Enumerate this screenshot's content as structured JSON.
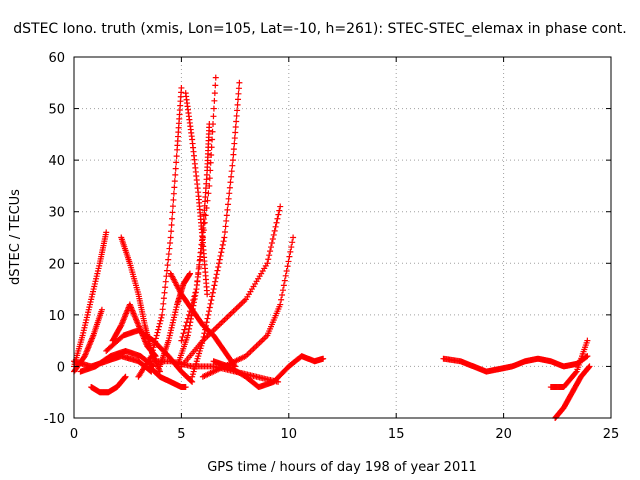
{
  "chart_data": {
    "type": "scatter",
    "title": "dSTEC Iono. truth (xmis, Lon=105, Lat=-10, h=261): STEC-STEC_elemax in phase cont.",
    "xlabel": "GPS time / hours of day 198 of year 2011",
    "ylabel": "dSTEC  / TECUs",
    "xlim": [
      0,
      25
    ],
    "ylim": [
      -10,
      60
    ],
    "xticks": [
      0,
      5,
      10,
      15,
      20,
      25
    ],
    "yticks": [
      -10,
      0,
      10,
      20,
      30,
      40,
      50,
      60
    ],
    "grid": true,
    "marker": "+",
    "color": "#ff0000",
    "series": [
      {
        "x": [
          0.0,
          0.4,
          0.8,
          1.2,
          1.5
        ],
        "y": [
          0,
          6,
          13,
          20,
          26
        ]
      },
      {
        "x": [
          0.0,
          0.5,
          0.9,
          1.3
        ],
        "y": [
          -1,
          2,
          6,
          11
        ]
      },
      {
        "x": [
          0.8,
          1.2,
          1.6,
          2.0,
          2.4
        ],
        "y": [
          -4,
          -5,
          -5,
          -4,
          -2
        ]
      },
      {
        "x": [
          0.0,
          0.8,
          1.5,
          2.2,
          3.0,
          3.6
        ],
        "y": [
          1,
          0,
          1,
          2,
          1,
          -1
        ]
      },
      {
        "x": [
          0.3,
          1.0,
          1.7,
          2.4,
          3.1,
          3.7
        ],
        "y": [
          -1,
          0,
          2,
          3,
          2,
          0
        ]
      },
      {
        "x": [
          2.2,
          2.6,
          3.0,
          3.3,
          3.6,
          4.0
        ],
        "y": [
          25,
          20,
          14,
          8,
          3,
          -1
        ]
      },
      {
        "x": [
          1.8,
          2.2,
          2.6,
          3.0,
          3.4,
          3.8
        ],
        "y": [
          5,
          8,
          12,
          8,
          4,
          2
        ]
      },
      {
        "x": [
          1.5,
          2.3,
          3.0,
          3.7,
          4.4,
          5.0,
          5.5
        ],
        "y": [
          3,
          6,
          7,
          5,
          2,
          -1,
          -3
        ]
      },
      {
        "x": [
          3.5,
          4.0,
          4.5,
          5.0,
          5.2
        ],
        "y": [
          0,
          -2,
          -3,
          -4,
          -4
        ]
      },
      {
        "x": [
          3.0,
          3.6,
          4.1,
          4.5,
          4.8,
          5.0
        ],
        "y": [
          -2,
          2,
          10,
          25,
          42,
          54
        ]
      },
      {
        "x": [
          4.0,
          4.4,
          4.8,
          5.1,
          5.4
        ],
        "y": [
          0,
          5,
          12,
          16,
          18
        ]
      },
      {
        "x": [
          4.5,
          5.0,
          5.5,
          6.0,
          6.5,
          7.0,
          7.5
        ],
        "y": [
          18,
          14,
          11,
          8,
          6,
          3,
          0
        ]
      },
      {
        "x": [
          5.2,
          5.5,
          5.8,
          6.0,
          6.2
        ],
        "y": [
          53,
          44,
          33,
          24,
          14
        ]
      },
      {
        "x": [
          4.8,
          5.3,
          5.7,
          6.0,
          6.2,
          6.3
        ],
        "y": [
          0,
          6,
          15,
          26,
          38,
          47
        ]
      },
      {
        "x": [
          5.0,
          5.7,
          6.3,
          6.6
        ],
        "y": [
          5,
          15,
          35,
          56
        ]
      },
      {
        "x": [
          5.5,
          6.0,
          6.5,
          7.0,
          7.4,
          7.7
        ],
        "y": [
          -2,
          5,
          15,
          25,
          40,
          55
        ]
      },
      {
        "x": [
          3.5,
          4.5,
          5.5,
          6.5,
          7.5,
          8.5,
          9.5
        ],
        "y": [
          1,
          1,
          0,
          0,
          -1,
          -2,
          -3
        ]
      },
      {
        "x": [
          5.0,
          6.0,
          7.0,
          8.0,
          9.0,
          9.6
        ],
        "y": [
          0,
          5,
          9,
          13,
          20,
          31
        ]
      },
      {
        "x": [
          6.0,
          7.0,
          8.0,
          9.0,
          9.6,
          10.2
        ],
        "y": [
          -2,
          0,
          2,
          6,
          12,
          25
        ]
      },
      {
        "x": [
          6.5,
          7.2,
          8.0,
          8.6,
          9.3,
          10.0,
          10.6,
          11.2,
          11.6
        ],
        "y": [
          1,
          0,
          -2,
          -4,
          -3,
          0,
          2,
          1,
          1.5
        ]
      },
      {
        "x": [
          17.2,
          18.0,
          18.6,
          19.2,
          19.8,
          20.4,
          21.0,
          21.6,
          22.2,
          22.8,
          23.4,
          23.9
        ],
        "y": [
          1.5,
          1,
          0,
          -1,
          -0.5,
          0,
          1,
          1.5,
          1,
          0,
          0.5,
          2
        ]
      },
      {
        "x": [
          22.2,
          22.8,
          23.4,
          23.9
        ],
        "y": [
          -4,
          -4,
          -1,
          5
        ]
      },
      {
        "x": [
          22.4,
          22.8,
          23.2,
          23.6,
          24.0
        ],
        "y": [
          -10,
          -8,
          -5,
          -2,
          0
        ]
      }
    ]
  }
}
